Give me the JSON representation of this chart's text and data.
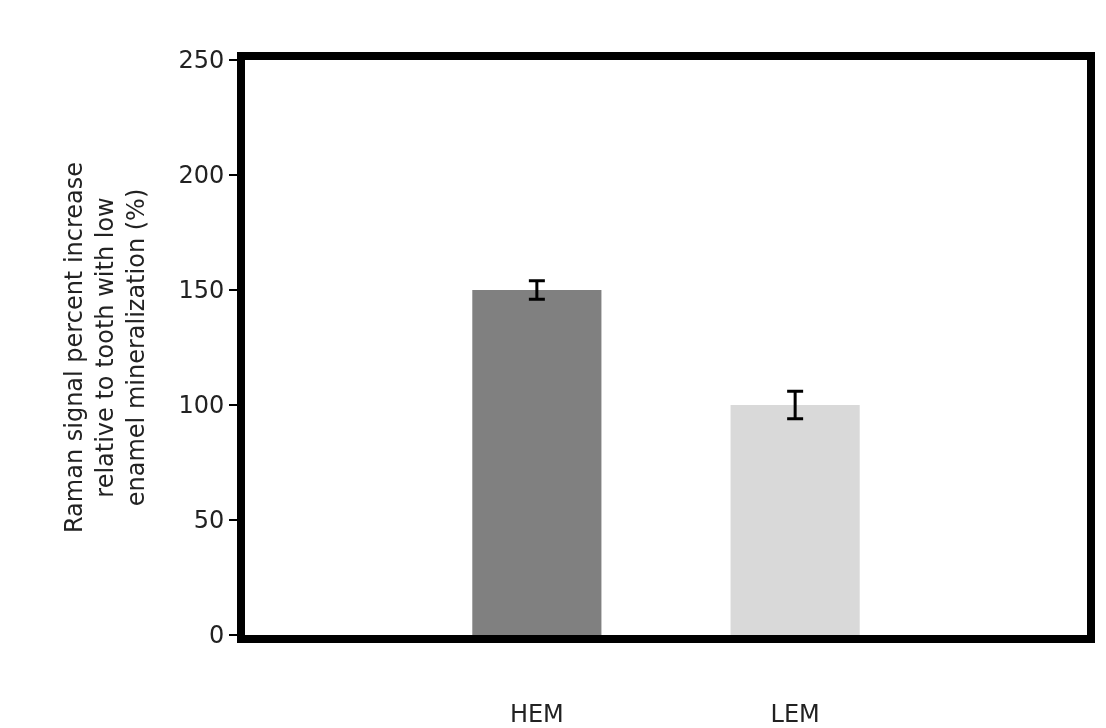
{
  "chart_data": {
    "type": "bar",
    "ylabel": "Raman signal percent increase\nrelative to tooth with low\nenamel mineralization (%)",
    "categories": [
      "HEM",
      "LEM"
    ],
    "values": [
      150,
      100
    ],
    "colors": [
      "#808080",
      "#d9d9d9"
    ],
    "errors": [
      4,
      6
    ],
    "ylim": [
      0,
      250
    ],
    "yticks": [
      0,
      50,
      100,
      150,
      200,
      250
    ],
    "grid": false
  }
}
